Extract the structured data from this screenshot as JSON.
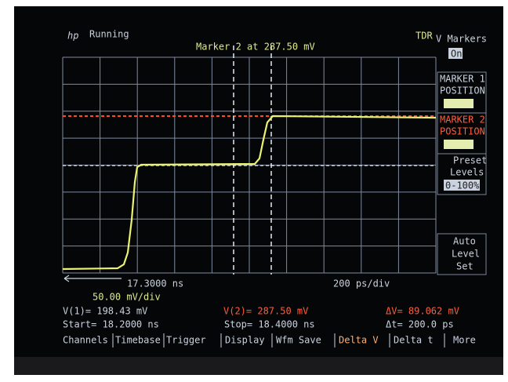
{
  "header": {
    "logo": "hp",
    "status": "Running",
    "marker_readout": "Marker 2 at 287.50 mV",
    "mode": "TDR",
    "menu_title": "V Markers",
    "menu_state": "On"
  },
  "softkeys": [
    {
      "lines": [
        "MARKER 1",
        "POSITION"
      ]
    },
    {
      "lines": [
        "MARKER 2",
        "POSITION"
      ]
    },
    {
      "lines": [
        "Preset",
        "Levels"
      ],
      "value": "0-100%"
    },
    {
      "lines": [
        "Auto",
        "Level",
        "Set"
      ]
    }
  ],
  "scale": {
    "time_offset": "17.3000 ns",
    "time_per_div": "200 ps/div",
    "volts_per_div": "50.00 mV/div"
  },
  "readouts": {
    "v1": "V(1)= 198.43 mV",
    "v2": "V(2)= 287.50 mV",
    "delta_v": "ΔV= 89.062 mV",
    "start": "Start= 18.2000 ns",
    "stop": "Stop= 18.4000 ns",
    "delta_t": "Δt= 200.0 ps"
  },
  "menu": [
    "Channels",
    "Timebase",
    "Trigger",
    "Display",
    "Wfm Save",
    "Delta V",
    "Delta t",
    "More"
  ]
}
